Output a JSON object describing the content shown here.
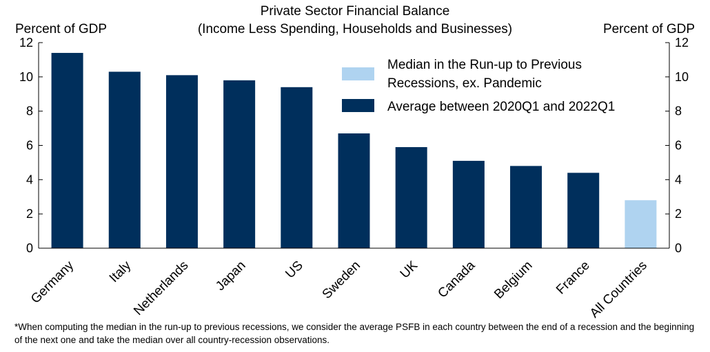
{
  "chart_data": {
    "type": "bar",
    "title": "Private Sector Financial Balance",
    "subtitle": "(Income Less Spending, Households and Businesses)",
    "ylabel_left": "Percent of GDP",
    "ylabel_right": "Percent of GDP",
    "ylim": [
      0,
      12
    ],
    "yticks": [
      0,
      2,
      4,
      6,
      8,
      10,
      12
    ],
    "categories": [
      "Germany",
      "Italy",
      "Netherlands",
      "Japan",
      "US",
      "Sweden",
      "UK",
      "Canada",
      "Belgium",
      "France",
      "All Countries"
    ],
    "series": [
      {
        "name": "Average between 2020Q1 and 2022Q1",
        "color": "#002f5c",
        "values": [
          11.4,
          10.3,
          10.1,
          9.8,
          9.4,
          6.7,
          5.9,
          5.1,
          4.8,
          4.4,
          null
        ]
      },
      {
        "name": "Median in the Run-up to Previous Recessions, ex. Pandemic",
        "color": "#afd3f0",
        "values": [
          null,
          null,
          null,
          null,
          null,
          null,
          null,
          null,
          null,
          null,
          2.8
        ]
      }
    ],
    "legend_position": "top-right",
    "grid": false
  },
  "footnote": "*When computing the median in the run-up to previous recessions, we consider the average PSFB in each country between the end of a recession and the beginning of the next one and take the median over all country-recession observations."
}
